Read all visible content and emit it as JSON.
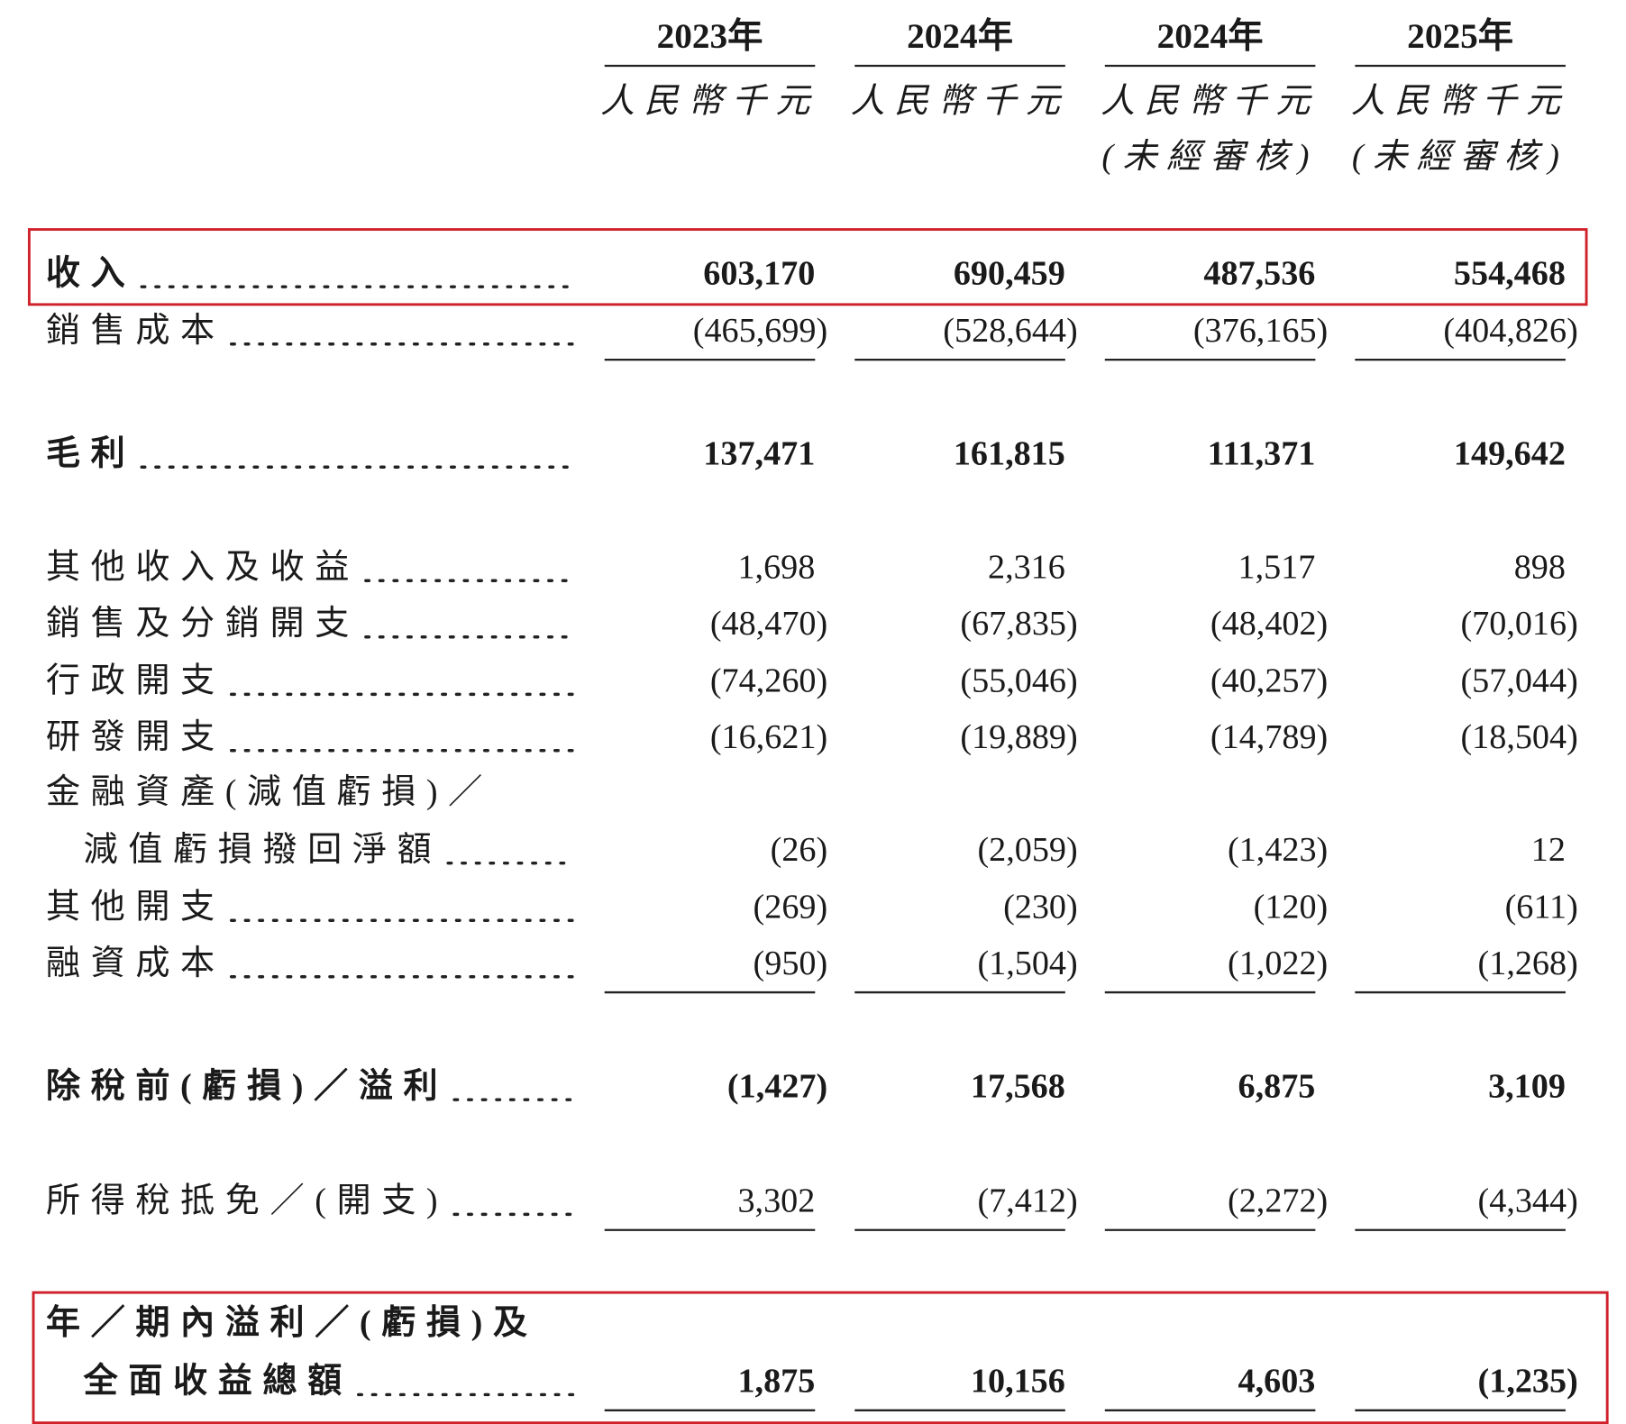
{
  "header": {
    "columns": [
      {
        "year": "2023年",
        "unit": "人民幣千元"
      },
      {
        "year": "2024年",
        "unit": "人民幣千元"
      },
      {
        "year": "2024年",
        "unit": "人民幣千元",
        "note": "(未經審核)"
      },
      {
        "year": "2025年",
        "unit": "人民幣千元",
        "note": "(未經審核)"
      }
    ]
  },
  "table": {
    "rows": [
      {
        "label": [
          "收入"
        ],
        "values": [
          "603,170",
          "690,459",
          "487,536",
          "554,468"
        ]
      },
      {
        "label": [
          "銷售成本"
        ],
        "values": [
          "(465,699)",
          "(528,644)",
          "(376,165)",
          "(404,826)"
        ]
      },
      {
        "label": [
          "毛利"
        ],
        "values": [
          "137,471",
          "161,815",
          "111,371",
          "149,642"
        ]
      },
      {
        "label": [
          "其他收入及收益"
        ],
        "values": [
          "1,698",
          "2,316",
          "1,517",
          "898"
        ]
      },
      {
        "label": [
          "銷售及分銷開支"
        ],
        "values": [
          "(48,470)",
          "(67,835)",
          "(48,402)",
          "(70,016)"
        ]
      },
      {
        "label": [
          "行政開支"
        ],
        "values": [
          "(74,260)",
          "(55,046)",
          "(40,257)",
          "(57,044)"
        ]
      },
      {
        "label": [
          "研發開支"
        ],
        "values": [
          "(16,621)",
          "(19,889)",
          "(14,789)",
          "(18,504)"
        ]
      },
      {
        "label": [
          "金融資產(減值虧損)／",
          "減值虧損撥回淨額"
        ],
        "values": [
          "(26)",
          "(2,059)",
          "(1,423)",
          "12"
        ]
      },
      {
        "label": [
          "其他開支"
        ],
        "values": [
          "(269)",
          "(230)",
          "(120)",
          "(611)"
        ]
      },
      {
        "label": [
          "融資成本"
        ],
        "values": [
          "(950)",
          "(1,504)",
          "(1,022)",
          "(1,268)"
        ]
      },
      {
        "label": [
          "除稅前(虧損)／溢利"
        ],
        "values": [
          "(1,427)",
          "17,568",
          "6,875",
          "3,109"
        ]
      },
      {
        "label": [
          "所得稅抵免／(開支)"
        ],
        "values": [
          "3,302",
          "(7,412)",
          "(2,272)",
          "(4,344)"
        ]
      },
      {
        "label": [
          "年／期內溢利／(虧損)及",
          "全面收益總額"
        ],
        "values": [
          "1,875",
          "10,156",
          "4,603",
          "(1,235)"
        ]
      }
    ]
  }
}
